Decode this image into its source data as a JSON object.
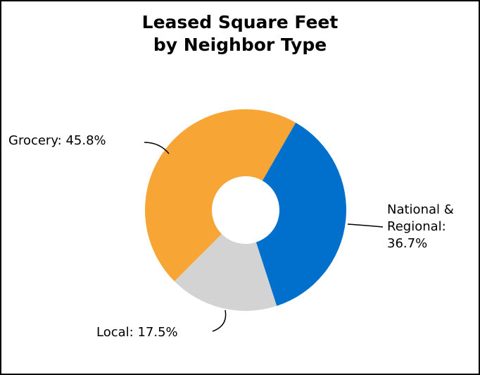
{
  "chart_data": {
    "type": "donut",
    "title": "Leased Square Feet by Neighbor Type",
    "values": [
      45.8,
      36.7,
      17.5
    ],
    "value_labels": [
      "Grocery: 45.8%",
      "National & Regional: 36.7%",
      "Local: 17.5%"
    ],
    "colors": [
      "#f7a535",
      "#0070cc",
      "#d3d3d3"
    ]
  }
}
